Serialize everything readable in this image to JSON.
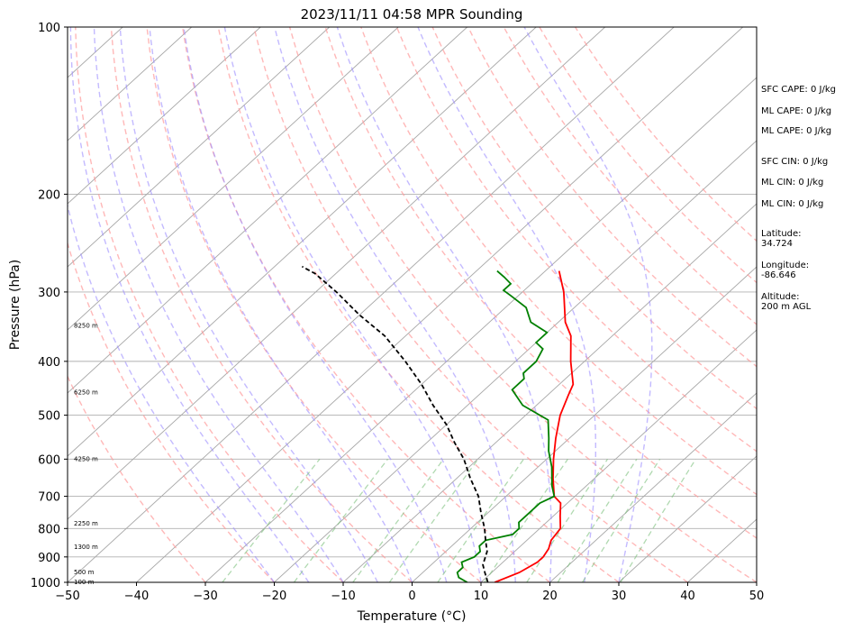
{
  "chart_data": {
    "type": "line",
    "title": "2023/11/11 04:58 MPR Sounding",
    "xlabel": "Temperature (°C)",
    "ylabel": "Pressure (hPa)",
    "xlim": [
      -50,
      50
    ],
    "ylim": [
      1000,
      100
    ],
    "y_scale": "log",
    "skew": "skew-T log-p",
    "grid": true,
    "x_ticks": [
      "−50",
      "−40",
      "−30",
      "−20",
      "−10",
      "0",
      "10",
      "20",
      "30",
      "40",
      "50"
    ],
    "y_ticks": [
      "100",
      "200",
      "300",
      "400",
      "500",
      "600",
      "700",
      "800",
      "900",
      "1000"
    ],
    "height_labels": [
      {
        "p": 1000,
        "label": "100 m"
      },
      {
        "p": 960,
        "label": "500 m"
      },
      {
        "p": 865,
        "label": "1300 m"
      },
      {
        "p": 785,
        "label": "2250 m"
      },
      {
        "p": 600,
        "label": "4250 m"
      },
      {
        "p": 455,
        "label": "6250 m"
      },
      {
        "p": 345,
        "label": "8250 m"
      }
    ],
    "series": [
      {
        "name": "temperature",
        "color": "#ff0000",
        "points": [
          [
            12,
            1000
          ],
          [
            14,
            960
          ],
          [
            15,
            920
          ],
          [
            15,
            900
          ],
          [
            14.5,
            870
          ],
          [
            13.5,
            840
          ],
          [
            13,
            800
          ],
          [
            11,
            760
          ],
          [
            9,
            720
          ],
          [
            7,
            700
          ],
          [
            4,
            650
          ],
          [
            1,
            600
          ],
          [
            -2,
            550
          ],
          [
            -5,
            500
          ],
          [
            -7,
            460
          ],
          [
            -8,
            440
          ],
          [
            -12,
            400
          ],
          [
            -16,
            360
          ],
          [
            -19,
            340
          ],
          [
            -24,
            300
          ],
          [
            -28,
            275
          ]
        ]
      },
      {
        "name": "dewpoint",
        "color": "#008000",
        "points": [
          [
            8,
            1000
          ],
          [
            6,
            980
          ],
          [
            5,
            960
          ],
          [
            5,
            940
          ],
          [
            4,
            920
          ],
          [
            5,
            900
          ],
          [
            5,
            880
          ],
          [
            4,
            860
          ],
          [
            4,
            840
          ],
          [
            7,
            820
          ],
          [
            7,
            800
          ],
          [
            6,
            780
          ],
          [
            6,
            760
          ],
          [
            6,
            740
          ],
          [
            6,
            720
          ],
          [
            7,
            700
          ],
          [
            5,
            670
          ],
          [
            2,
            620
          ],
          [
            -1,
            580
          ],
          [
            -3,
            550
          ],
          [
            -6,
            510
          ],
          [
            -12,
            480
          ],
          [
            -16,
            450
          ],
          [
            -16,
            430
          ],
          [
            -17,
            420
          ],
          [
            -17,
            400
          ],
          [
            -18,
            380
          ],
          [
            -20,
            370
          ],
          [
            -20,
            355
          ],
          [
            -24,
            340
          ],
          [
            -27,
            320
          ],
          [
            -31,
            305
          ],
          [
            -33,
            298
          ],
          [
            -33,
            290
          ],
          [
            -35,
            282
          ],
          [
            -37,
            275
          ]
        ]
      },
      {
        "name": "parcel",
        "color": "#000000",
        "dashed": true,
        "points": [
          [
            11,
            1000
          ],
          [
            9,
            960
          ],
          [
            7.5,
            930
          ],
          [
            6,
            880
          ],
          [
            4,
            840
          ],
          [
            2,
            800
          ],
          [
            -1,
            750
          ],
          [
            -4,
            700
          ],
          [
            -8,
            650
          ],
          [
            -12,
            600
          ],
          [
            -16,
            560
          ],
          [
            -20,
            520
          ],
          [
            -25,
            480
          ],
          [
            -30,
            440
          ],
          [
            -36,
            400
          ],
          [
            -43,
            360
          ],
          [
            -50,
            330
          ],
          [
            -57,
            300
          ],
          [
            -63,
            278
          ],
          [
            -66,
            270
          ]
        ]
      }
    ],
    "dry_adiabats_theta_c": [
      -30,
      -20,
      -10,
      0,
      10,
      20,
      30,
      40,
      50,
      60,
      70,
      80,
      90,
      100,
      110,
      120,
      130
    ],
    "moist_adiabats_c": [
      -20,
      -15,
      -10,
      -5,
      0,
      5,
      10,
      15,
      20,
      25,
      30
    ],
    "mixing_ratio_lines_gkg": [
      0.4,
      1,
      2,
      3,
      5,
      8,
      12,
      16,
      20,
      28
    ],
    "indices": {
      "sfc_cape": "SFC CAPE: 0 J/kg",
      "ml_cape": "ML CAPE: 0 J/kg",
      "ml_cape_2": "ML CAPE: 0 J/kg",
      "sfc_cin": "SFC CIN: 0 J/kg",
      "ml_cin": "ML CIN: 0 J/kg",
      "ml_cin_2": "ML CIN: 0 J/kg",
      "lat_label": "Latitude:",
      "lat_value": "34.724",
      "lon_label": "Longitude:",
      "lon_value": "-86.646",
      "alt_label": "Altitude:",
      "alt_value": "200 m AGL"
    }
  }
}
